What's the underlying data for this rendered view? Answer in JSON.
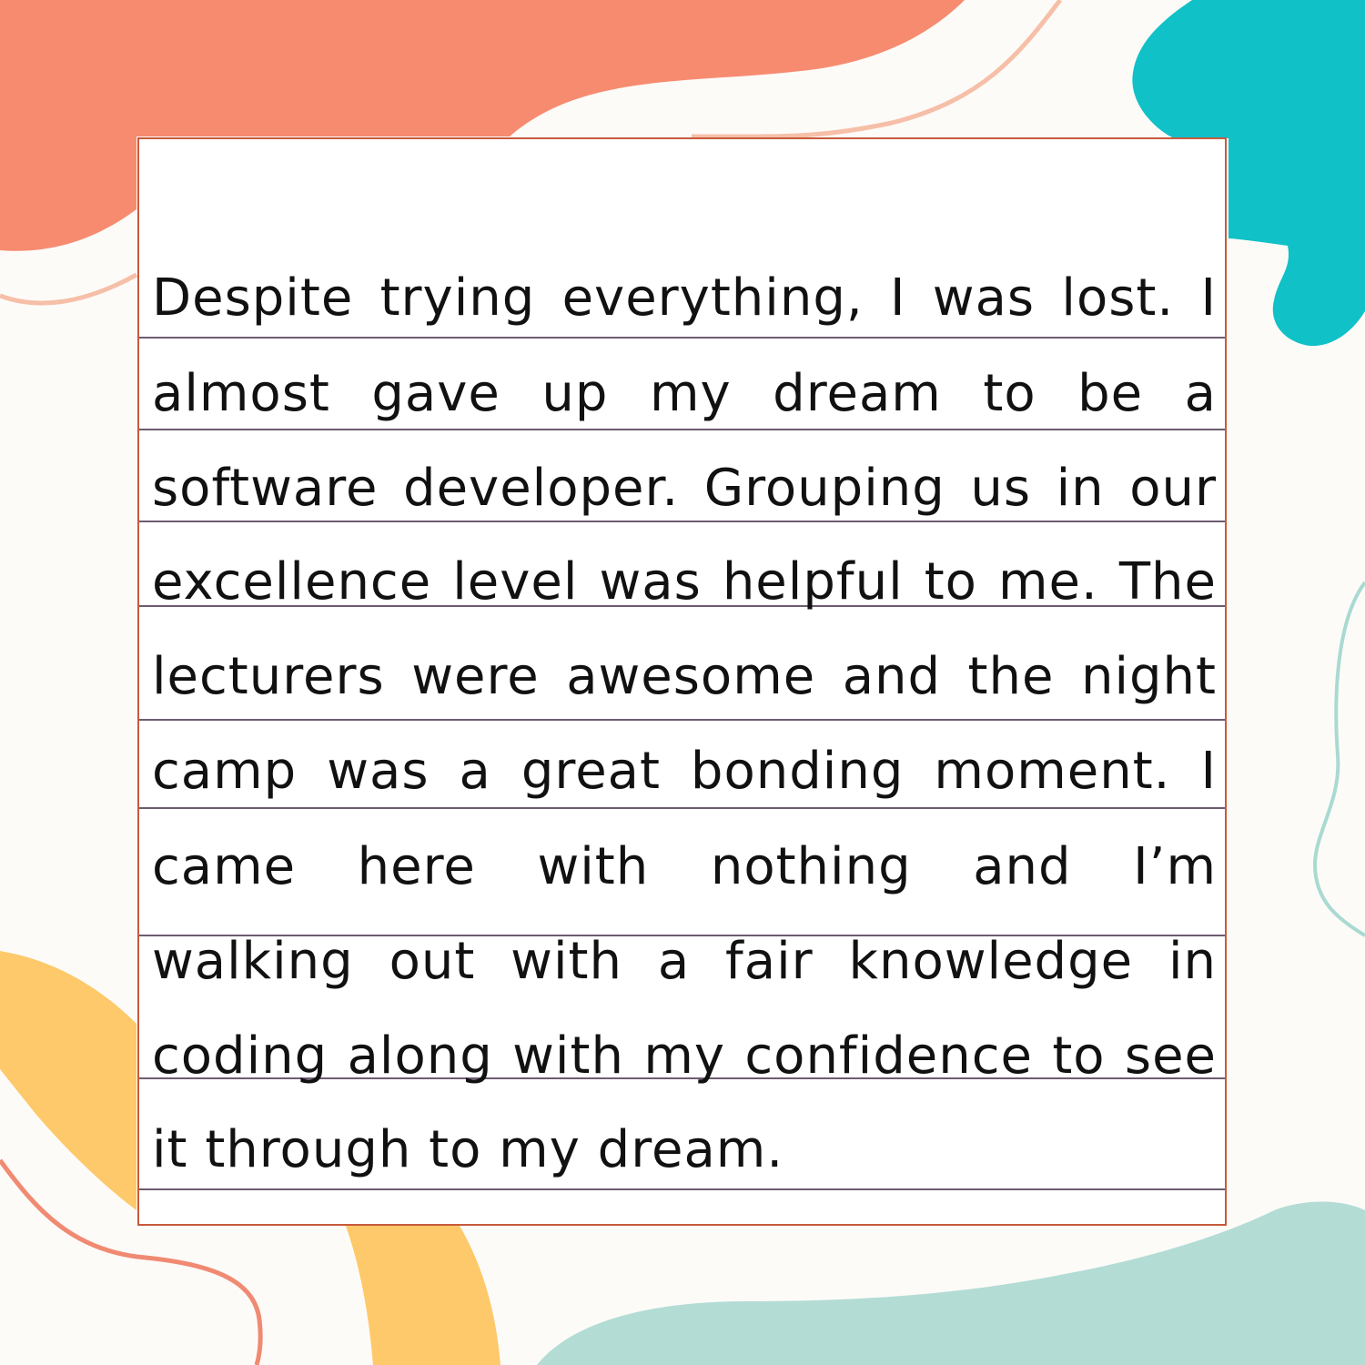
{
  "colors": {
    "coral": "#f78b70",
    "teal": "#11c1c8",
    "yellow": "#fdc96a",
    "mint": "#b3dcd5",
    "frame": "#c85a3c",
    "rule": "#6e5b72",
    "text": "#111111"
  },
  "text_lines": [
    "Despite trying everything, I was lost. I",
    "almost gave up my dream to be a",
    "software developer. Grouping us in our",
    "excellence level was helpful to me. The",
    "lecturers were awesome and the night",
    "camp was a great bonding moment. I",
    "came here with nothing and I’m",
    "walking out with a fair knowledge in",
    "coding along with my confidence to see",
    "it through to my dream."
  ]
}
